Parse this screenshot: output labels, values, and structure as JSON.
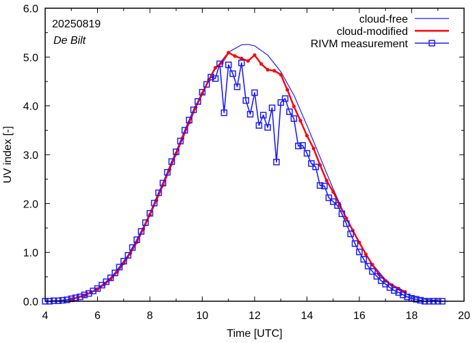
{
  "chart_data": {
    "type": "line",
    "title": "",
    "xlabel": "Time  [UTC]",
    "ylabel": "UV index  [-]",
    "xlim": [
      4,
      20
    ],
    "ylim": [
      0,
      6
    ],
    "grid": false,
    "legend_position": "top-right",
    "annotations": [
      "20250819",
      "De Bilt"
    ],
    "x_ticks": [
      4,
      6,
      8,
      10,
      12,
      14,
      16,
      18,
      20
    ],
    "x_tick_labels": [
      "4",
      "6",
      "8",
      "10",
      "12",
      "14",
      "16",
      "18",
      "20"
    ],
    "y_ticks": [
      0,
      1,
      2,
      3,
      4,
      5,
      6
    ],
    "y_tick_labels": [
      "0.0",
      "1.0",
      "2.0",
      "3.0",
      "4.0",
      "5.0",
      "6.0"
    ],
    "series": [
      {
        "name": "cloud-free",
        "color": "#1a1aff",
        "style": "thin-line",
        "x": [
          4.0,
          4.5,
          5.0,
          5.5,
          6.0,
          6.5,
          7.0,
          7.5,
          8.0,
          8.5,
          9.0,
          9.5,
          10.0,
          10.5,
          11.0,
          11.5,
          11.75,
          12.0,
          12.5,
          13.0,
          13.5,
          14.0,
          14.5,
          15.0,
          15.5,
          16.0,
          16.5,
          17.0,
          17.5,
          18.0,
          18.5,
          19.0,
          19.4
        ],
        "y": [
          0.0,
          0.01,
          0.04,
          0.12,
          0.25,
          0.46,
          0.78,
          1.22,
          1.78,
          2.4,
          3.03,
          3.67,
          4.26,
          4.76,
          5.1,
          5.25,
          5.26,
          5.23,
          5.04,
          4.7,
          4.22,
          3.6,
          2.95,
          2.3,
          1.7,
          1.18,
          0.76,
          0.44,
          0.23,
          0.1,
          0.04,
          0.01,
          0.0
        ]
      },
      {
        "name": "cloud-modified",
        "color": "#ff0000",
        "style": "thick-line-dots",
        "x": [
          5.0,
          5.25,
          5.5,
          5.75,
          6.0,
          6.25,
          6.5,
          6.75,
          7.0,
          7.25,
          7.5,
          7.75,
          8.0,
          8.25,
          8.5,
          8.75,
          9.0,
          9.25,
          9.5,
          9.75,
          10.0,
          10.25,
          10.5,
          10.75,
          11.0,
          11.25,
          11.5,
          11.75,
          12.0,
          12.25,
          12.5,
          12.75,
          13.0,
          13.25,
          13.5,
          13.75,
          14.0,
          14.25,
          14.5,
          14.75,
          15.0,
          15.25,
          15.5,
          15.75,
          16.0,
          16.25,
          16.5,
          16.75,
          17.0,
          17.25,
          17.5,
          17.75
        ],
        "y": [
          0.04,
          0.08,
          0.12,
          0.18,
          0.25,
          0.34,
          0.45,
          0.6,
          0.78,
          0.98,
          1.21,
          1.48,
          1.77,
          2.07,
          2.38,
          2.7,
          3.02,
          3.34,
          3.66,
          3.97,
          4.25,
          4.53,
          4.78,
          4.88,
          5.09,
          5.02,
          4.97,
          4.92,
          5.04,
          4.86,
          4.74,
          4.72,
          4.64,
          4.33,
          3.99,
          3.7,
          3.39,
          3.13,
          2.79,
          2.47,
          2.24,
          1.97,
          1.7,
          1.45,
          1.2,
          0.96,
          0.75,
          0.55,
          0.42,
          0.33,
          0.26,
          0.19
        ]
      },
      {
        "name": "RIVM measurement",
        "color": "#1a1aff",
        "style": "line-open-squares",
        "x": [
          4.0,
          4.167,
          4.333,
          4.5,
          4.667,
          4.833,
          5.0,
          5.167,
          5.333,
          5.5,
          5.667,
          5.833,
          6.0,
          6.167,
          6.333,
          6.5,
          6.667,
          6.833,
          7.0,
          7.167,
          7.333,
          7.5,
          7.667,
          7.833,
          8.0,
          8.167,
          8.333,
          8.5,
          8.667,
          8.833,
          9.0,
          9.167,
          9.333,
          9.5,
          9.667,
          9.833,
          10.0,
          10.167,
          10.333,
          10.5,
          10.667,
          10.833,
          11.0,
          11.167,
          11.333,
          11.5,
          11.667,
          11.833,
          12.0,
          12.167,
          12.333,
          12.5,
          12.667,
          12.833,
          13.0,
          13.167,
          13.333,
          13.5,
          13.667,
          13.833,
          14.0,
          14.167,
          14.333,
          14.5,
          14.667,
          14.833,
          15.0,
          15.167,
          15.333,
          15.5,
          15.667,
          15.833,
          16.0,
          16.167,
          16.333,
          16.5,
          16.667,
          16.833,
          17.0,
          17.167,
          17.333,
          17.5,
          17.667,
          17.833,
          18.0,
          18.167,
          18.333,
          18.5,
          18.667,
          18.833,
          19.0,
          19.167
        ],
        "y": [
          0.0,
          0.0,
          0.01,
          0.01,
          0.02,
          0.03,
          0.05,
          0.07,
          0.09,
          0.13,
          0.16,
          0.21,
          0.26,
          0.33,
          0.4,
          0.48,
          0.58,
          0.7,
          0.82,
          0.94,
          1.1,
          1.26,
          1.43,
          1.61,
          1.8,
          2.01,
          2.22,
          2.42,
          2.64,
          2.86,
          3.06,
          3.28,
          3.5,
          3.71,
          3.92,
          4.09,
          4.28,
          4.44,
          4.59,
          4.56,
          4.86,
          3.86,
          4.84,
          4.66,
          4.39,
          4.88,
          4.11,
          3.83,
          4.27,
          3.6,
          3.81,
          3.56,
          3.96,
          2.85,
          4.07,
          4.15,
          3.88,
          3.74,
          3.18,
          3.19,
          3.03,
          2.82,
          2.75,
          2.37,
          2.36,
          2.12,
          2.04,
          1.96,
          1.79,
          1.59,
          1.38,
          1.18,
          1.01,
          0.86,
          0.72,
          0.61,
          0.51,
          0.42,
          0.35,
          0.28,
          0.22,
          0.18,
          0.13,
          0.09,
          0.06,
          0.04,
          0.02,
          0.0,
          0.0,
          0.0,
          0.0,
          0.0
        ]
      }
    ]
  }
}
